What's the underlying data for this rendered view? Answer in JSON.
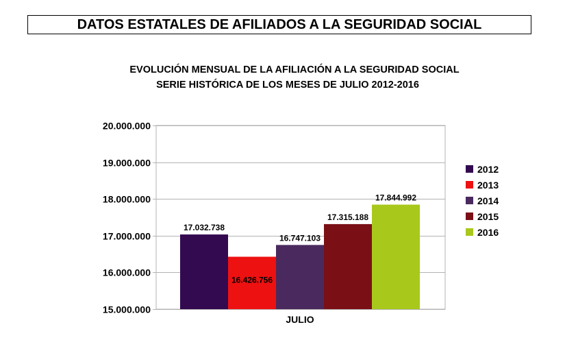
{
  "header": {
    "banner": "DATOS ESTATALES DE  AFILIADOS A LA SEGURIDAD SOCIAL"
  },
  "chart_data": {
    "type": "bar",
    "title": "EVOLUCIÓN MENSUAL DE LA  AFILIACIÓN A LA SEGURIDAD SOCIAL",
    "subtitle": "SERIE HISTÓRICA DE LOS MESES DE JULIO 2012-2016",
    "categories": [
      "JULIO"
    ],
    "series": [
      {
        "name": "2012",
        "values": [
          17032738
        ],
        "label": "17.032.738",
        "color": "#330a50"
      },
      {
        "name": "2013",
        "values": [
          16426756
        ],
        "label": "16.426.756",
        "color": "#ee1111"
      },
      {
        "name": "2014",
        "values": [
          16747103
        ],
        "label": "16.747.103",
        "color": "#4a2a5e"
      },
      {
        "name": "2015",
        "values": [
          17315188
        ],
        "label": "17.315.188",
        "color": "#7a1016"
      },
      {
        "name": "2016",
        "values": [
          17844992
        ],
        "label": "17.844.992",
        "color": "#a8c81c"
      }
    ],
    "ylim": [
      15000000,
      20000000
    ],
    "yticks": [
      "15.000.000",
      "16.000.000",
      "17.000.000",
      "18.000.000",
      "19.000.000",
      "20.000.000"
    ],
    "ytick_values": [
      15000000,
      16000000,
      17000000,
      18000000,
      19000000,
      20000000
    ],
    "grid": true,
    "legend": "right",
    "xlabel": "",
    "ylabel": ""
  }
}
